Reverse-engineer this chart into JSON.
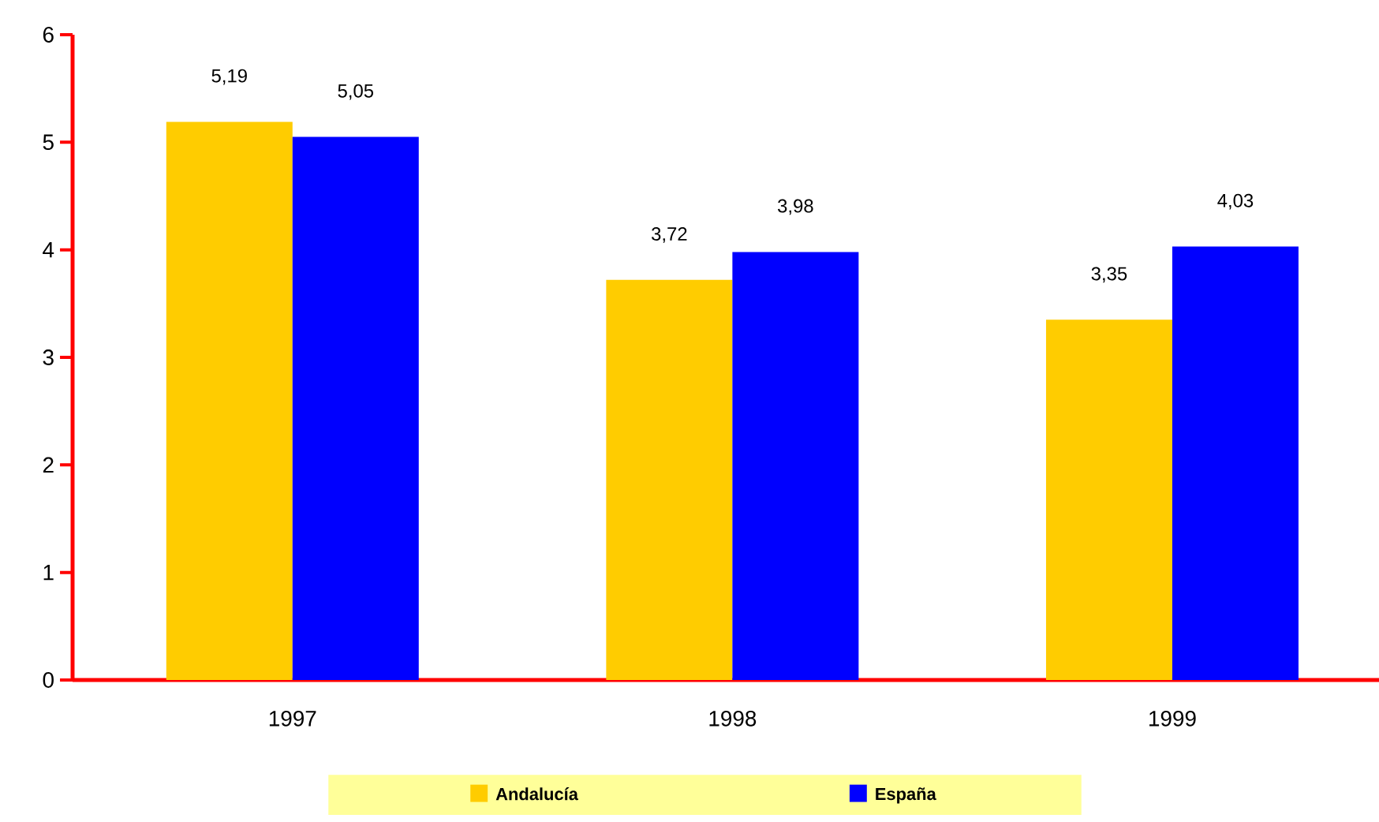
{
  "chart_data": {
    "type": "bar",
    "categories": [
      "1997",
      "1998",
      "1999"
    ],
    "series": [
      {
        "name": "Andalucía",
        "color": "#ffcc00",
        "values": [
          5.19,
          3.72,
          3.35
        ],
        "value_labels": [
          "5,19",
          "3,72",
          "3,35"
        ]
      },
      {
        "name": "España",
        "color": "#0000ff",
        "values": [
          5.05,
          3.98,
          4.03
        ],
        "value_labels": [
          "5,05",
          "3,98",
          "4,03"
        ]
      }
    ],
    "ylim": [
      0,
      6
    ],
    "yticks": [
      0,
      1,
      2,
      3,
      4,
      5,
      6
    ],
    "legend": "bottom"
  }
}
